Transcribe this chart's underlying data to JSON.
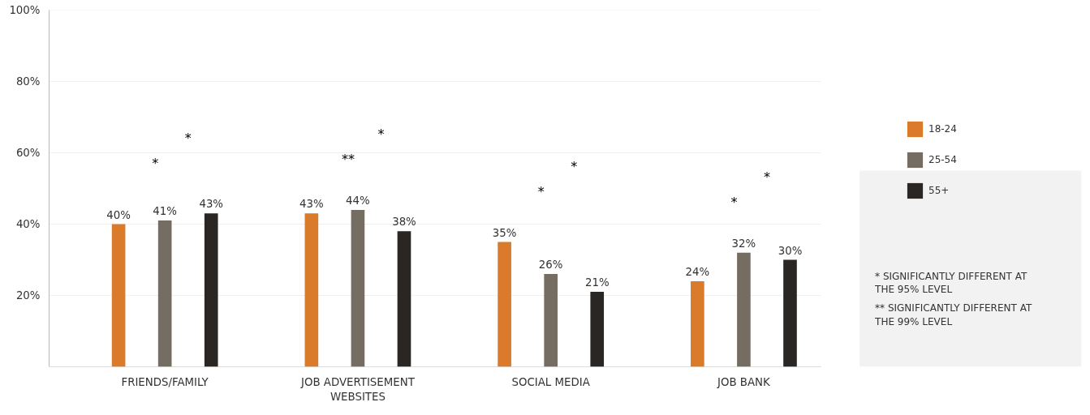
{
  "chart_data": {
    "type": "bar",
    "categories": [
      "FRIENDS/FAMILY",
      "JOB ADVERTISEMENT WEBSITES",
      "SOCIAL MEDIA",
      "JOB BANK"
    ],
    "series": [
      {
        "name": "18-24",
        "color": "#d97b2b",
        "values": [
          40,
          43,
          35,
          24
        ]
      },
      {
        "name": "25-54",
        "color": "#766d62",
        "values": [
          41,
          44,
          26,
          32
        ]
      },
      {
        "name": "55+",
        "color": "#2a2623",
        "values": [
          43,
          38,
          21,
          30
        ]
      }
    ],
    "ylim": [
      0,
      100
    ],
    "yticks": [
      {
        "value": 0,
        "label": null
      },
      {
        "value": 20,
        "label": "20%"
      },
      {
        "value": 40,
        "label": "40%"
      },
      {
        "value": 60,
        "label": "60%"
      },
      {
        "value": 80,
        "label": "80%"
      },
      {
        "value": 100,
        "label": "100%"
      }
    ],
    "value_labels": [
      [
        "40%",
        "43%",
        "35%",
        "24%"
      ],
      [
        "41%",
        "44%",
        "26%",
        "32%"
      ],
      [
        "43%",
        "38%",
        "21%",
        "30%"
      ]
    ],
    "grid": "y",
    "legend": "right",
    "annotations": [
      "*",
      "*",
      "**",
      "*",
      "*",
      "*",
      "*",
      "*",
      "* SIGNIFICANTLY DIFFERENT AT THE 95% LEVEL",
      "** SIGNIFICANTLY DIFFERENT AT THE 99% LEVEL"
    ]
  }
}
